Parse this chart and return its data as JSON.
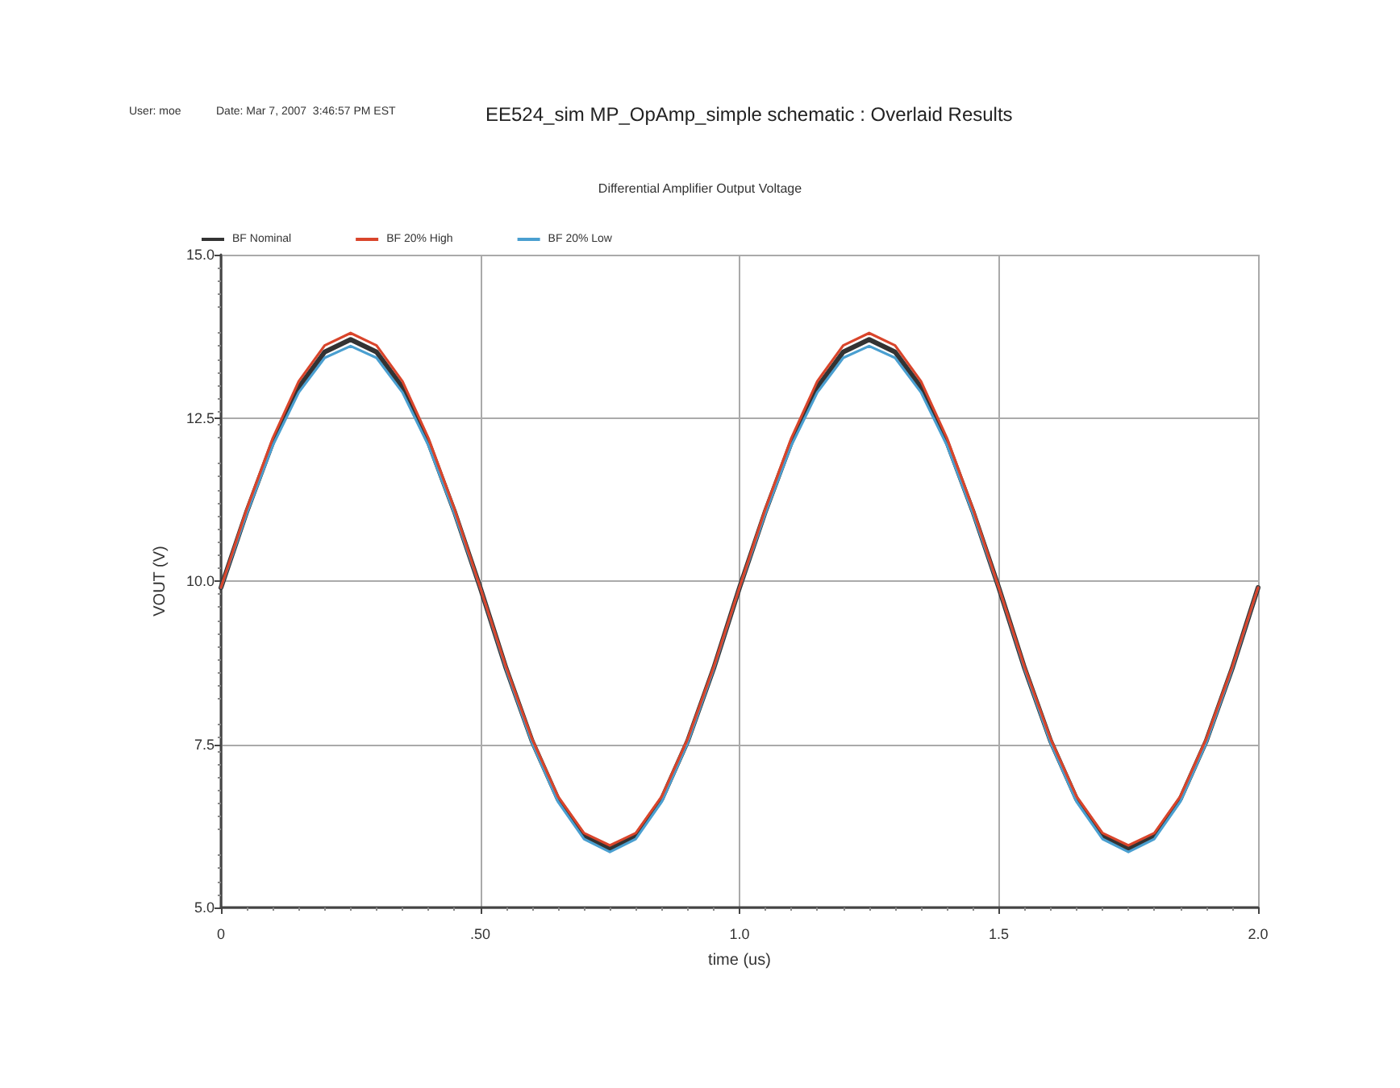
{
  "chart_data": {
    "type": "line",
    "title": "EE524_sim MP_OpAmp_simple schematic : Overlaid Results",
    "subtitle": "Differential Amplifier Output Voltage",
    "xlabel": "time (us)",
    "ylabel": "VOUT (V)",
    "annotations": [
      "User: moe",
      "Date: Mar 7, 2007  3:46:57 PM EST"
    ],
    "x": [
      0,
      0.05,
      0.1,
      0.15,
      0.2,
      0.25,
      0.3,
      0.35,
      0.4,
      0.45,
      0.5,
      0.55,
      0.6,
      0.65,
      0.7,
      0.75,
      0.8,
      0.85,
      0.9,
      0.95,
      1,
      1.05,
      1.1,
      1.15,
      1.2,
      1.25,
      1.3,
      1.35,
      1.4,
      1.45,
      1.5,
      1.55,
      1.6,
      1.65,
      1.7,
      1.75,
      1.8,
      1.85,
      1.9,
      1.95,
      2
    ],
    "series": [
      {
        "name": "BF Nominal",
        "color": "#333333",
        "values": [
          9.9,
          11.07,
          12.13,
          12.97,
          13.51,
          13.7,
          13.51,
          12.97,
          12.13,
          11.07,
          9.9,
          8.66,
          7.55,
          6.66,
          6.1,
          5.9,
          6.1,
          6.66,
          7.55,
          8.66,
          9.9,
          11.07,
          12.13,
          12.97,
          13.51,
          13.7,
          13.51,
          12.97,
          12.13,
          11.07,
          9.9,
          8.66,
          7.55,
          6.66,
          6.1,
          5.9,
          6.1,
          6.66,
          7.55,
          8.66,
          9.9
        ]
      },
      {
        "name": "BF 20% High",
        "color": "#d9452b",
        "values": [
          9.9,
          11.11,
          12.19,
          13.06,
          13.61,
          13.8,
          13.61,
          13.06,
          12.19,
          11.11,
          9.9,
          8.68,
          7.58,
          6.7,
          6.14,
          5.95,
          6.14,
          6.7,
          7.58,
          8.68,
          9.9,
          11.11,
          12.19,
          13.06,
          13.61,
          13.8,
          13.61,
          13.06,
          12.19,
          11.11,
          9.9,
          8.68,
          7.58,
          6.7,
          6.14,
          5.95,
          6.14,
          6.7,
          7.58,
          8.68,
          9.9
        ]
      },
      {
        "name": "BF 20% Low",
        "color": "#4a9fd0",
        "values": [
          9.9,
          11.04,
          12.08,
          12.89,
          13.42,
          13.6,
          13.42,
          12.89,
          12.08,
          11.04,
          9.9,
          8.65,
          7.52,
          6.62,
          6.05,
          5.85,
          6.05,
          6.62,
          7.52,
          8.65,
          9.9,
          11.04,
          12.08,
          12.89,
          13.42,
          13.6,
          13.42,
          12.89,
          12.08,
          11.04,
          9.9,
          8.65,
          7.52,
          6.62,
          6.05,
          5.85,
          6.05,
          6.62,
          7.52,
          8.65,
          9.9
        ]
      }
    ],
    "xlim": [
      0,
      2
    ],
    "xticks": [
      0,
      {
        "value": 0.5,
        "label": ".50"
      },
      {
        "value": 1,
        "label": "1.0"
      },
      {
        "value": 1.5,
        "label": "1.5"
      },
      {
        "value": 2,
        "label": "2.0"
      }
    ],
    "ylim": [
      5,
      15
    ],
    "yticks": [
      {
        "value": 5,
        "label": "5.0"
      },
      7.5,
      {
        "value": 10,
        "label": "10.0"
      },
      12.5,
      {
        "value": 15,
        "label": "15.0"
      }
    ],
    "grid": true,
    "legend": "top left",
    "marker": "none",
    "line_style": "solid"
  }
}
